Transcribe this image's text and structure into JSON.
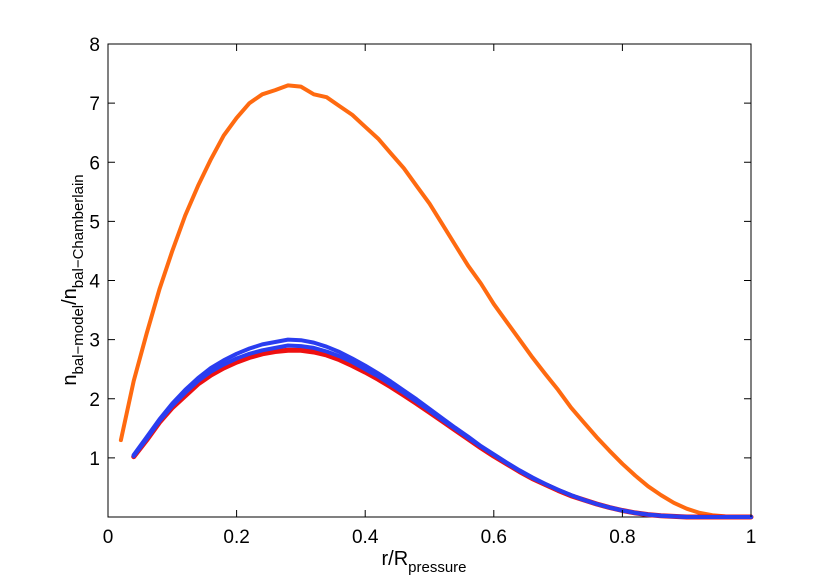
{
  "chart_data": {
    "type": "line",
    "title": "",
    "xlabel": {
      "main": "r/R",
      "sub": "pressure"
    },
    "ylabel": {
      "n1": "n",
      "sub1": "bal−model",
      "slash": "/n",
      "sub2": "bal−Chamberlain"
    },
    "xlim": [
      0,
      1
    ],
    "ylim": [
      0,
      8
    ],
    "xticks": [
      0,
      0.2,
      0.4,
      0.6,
      0.8,
      1
    ],
    "xtick_labels": [
      "0",
      "0.2",
      "0.4",
      "0.6",
      "0.8",
      "1"
    ],
    "yticks": [
      1,
      2,
      3,
      4,
      5,
      6,
      7,
      8
    ],
    "ytick_labels": [
      "1",
      "2",
      "3",
      "4",
      "5",
      "6",
      "7",
      "8"
    ],
    "grid": false,
    "legend": "none",
    "series": [
      {
        "color": "#ff6a10",
        "x": [
          0.02,
          0.04,
          0.06,
          0.08,
          0.1,
          0.12,
          0.14,
          0.16,
          0.18,
          0.2,
          0.22,
          0.24,
          0.26,
          0.28,
          0.3,
          0.32,
          0.34,
          0.36,
          0.38,
          0.4,
          0.42,
          0.44,
          0.46,
          0.48,
          0.5,
          0.52,
          0.54,
          0.56,
          0.58,
          0.6,
          0.62,
          0.64,
          0.66,
          0.68,
          0.7,
          0.72,
          0.74,
          0.76,
          0.78,
          0.8,
          0.82,
          0.84,
          0.86,
          0.88,
          0.9,
          0.92,
          0.94,
          0.96,
          0.98,
          1.0
        ],
        "y": [
          1.3,
          2.3,
          3.1,
          3.85,
          4.5,
          5.1,
          5.6,
          6.05,
          6.45,
          6.75,
          7.0,
          7.15,
          7.22,
          7.3,
          7.28,
          7.15,
          7.1,
          6.95,
          6.8,
          6.6,
          6.4,
          6.15,
          5.9,
          5.6,
          5.3,
          4.95,
          4.6,
          4.25,
          3.95,
          3.6,
          3.3,
          3.0,
          2.7,
          2.42,
          2.15,
          1.85,
          1.6,
          1.35,
          1.12,
          0.9,
          0.7,
          0.52,
          0.37,
          0.24,
          0.14,
          0.07,
          0.03,
          0.01,
          0.0,
          0.0
        ]
      },
      {
        "color": "#ee1010",
        "x": [
          0.04,
          0.06,
          0.08,
          0.1,
          0.12,
          0.14,
          0.16,
          0.18,
          0.2,
          0.22,
          0.24,
          0.26,
          0.28,
          0.3,
          0.32,
          0.34,
          0.36,
          0.38,
          0.4,
          0.42,
          0.44,
          0.46,
          0.48,
          0.5,
          0.52,
          0.54,
          0.56,
          0.58,
          0.6,
          0.62,
          0.64,
          0.66,
          0.68,
          0.7,
          0.72,
          0.74,
          0.76,
          0.78,
          0.8,
          0.82,
          0.84,
          0.86,
          0.88,
          0.9,
          0.92,
          0.94,
          0.96,
          0.98,
          1.0
        ],
        "y": [
          1.02,
          1.3,
          1.6,
          1.85,
          2.05,
          2.25,
          2.4,
          2.52,
          2.62,
          2.7,
          2.76,
          2.8,
          2.82,
          2.82,
          2.79,
          2.74,
          2.66,
          2.56,
          2.45,
          2.33,
          2.2,
          2.06,
          1.92,
          1.77,
          1.62,
          1.47,
          1.32,
          1.17,
          1.03,
          0.9,
          0.77,
          0.65,
          0.55,
          0.45,
          0.36,
          0.29,
          0.22,
          0.16,
          0.11,
          0.07,
          0.04,
          0.02,
          0.01,
          0.0,
          0.0,
          0.0,
          0.0,
          0.0,
          0.0
        ]
      },
      {
        "color": "#2a3df0",
        "x": [
          0.04,
          0.06,
          0.08,
          0.1,
          0.12,
          0.14,
          0.16,
          0.18,
          0.2,
          0.22,
          0.24,
          0.26,
          0.28,
          0.3,
          0.32,
          0.34,
          0.36,
          0.38,
          0.4,
          0.42,
          0.44,
          0.46,
          0.48,
          0.5,
          0.52,
          0.54,
          0.56,
          0.58,
          0.6,
          0.62,
          0.64,
          0.66,
          0.68,
          0.7,
          0.72,
          0.74,
          0.76,
          0.78,
          0.8,
          0.82,
          0.84,
          0.86,
          0.88,
          0.9,
          0.92,
          0.94,
          0.96,
          0.98,
          1.0
        ],
        "y": [
          1.05,
          1.35,
          1.65,
          1.92,
          2.15,
          2.35,
          2.52,
          2.65,
          2.76,
          2.85,
          2.92,
          2.96,
          3.0,
          2.99,
          2.95,
          2.88,
          2.79,
          2.68,
          2.56,
          2.43,
          2.29,
          2.14,
          1.99,
          1.83,
          1.67,
          1.51,
          1.36,
          1.2,
          1.06,
          0.92,
          0.79,
          0.67,
          0.56,
          0.46,
          0.37,
          0.29,
          0.22,
          0.16,
          0.11,
          0.07,
          0.04,
          0.02,
          0.01,
          0.0,
          0.0,
          0.0,
          0.0,
          0.0,
          0.0
        ]
      },
      {
        "color": "#2a3df0",
        "x": [
          0.04,
          0.06,
          0.08,
          0.1,
          0.12,
          0.14,
          0.16,
          0.18,
          0.2,
          0.22,
          0.24,
          0.26,
          0.28,
          0.3,
          0.32,
          0.34,
          0.36,
          0.38,
          0.4,
          0.42,
          0.44,
          0.46,
          0.48,
          0.5,
          0.52,
          0.54,
          0.56,
          0.58,
          0.6,
          0.62,
          0.64,
          0.66,
          0.68,
          0.7,
          0.72,
          0.74,
          0.76,
          0.78,
          0.8,
          0.82,
          0.84,
          0.86,
          0.88,
          0.9,
          0.92,
          0.94,
          0.96,
          0.98,
          1.0
        ],
        "y": [
          1.03,
          1.32,
          1.62,
          1.88,
          2.1,
          2.3,
          2.46,
          2.58,
          2.68,
          2.76,
          2.82,
          2.86,
          2.9,
          2.89,
          2.86,
          2.8,
          2.72,
          2.62,
          2.5,
          2.38,
          2.24,
          2.1,
          1.95,
          1.8,
          1.64,
          1.49,
          1.34,
          1.19,
          1.05,
          0.91,
          0.78,
          0.66,
          0.56,
          0.46,
          0.37,
          0.29,
          0.22,
          0.16,
          0.11,
          0.07,
          0.04,
          0.02,
          0.01,
          0.0,
          0.0,
          0.0,
          0.0,
          0.0,
          0.0
        ]
      }
    ]
  }
}
